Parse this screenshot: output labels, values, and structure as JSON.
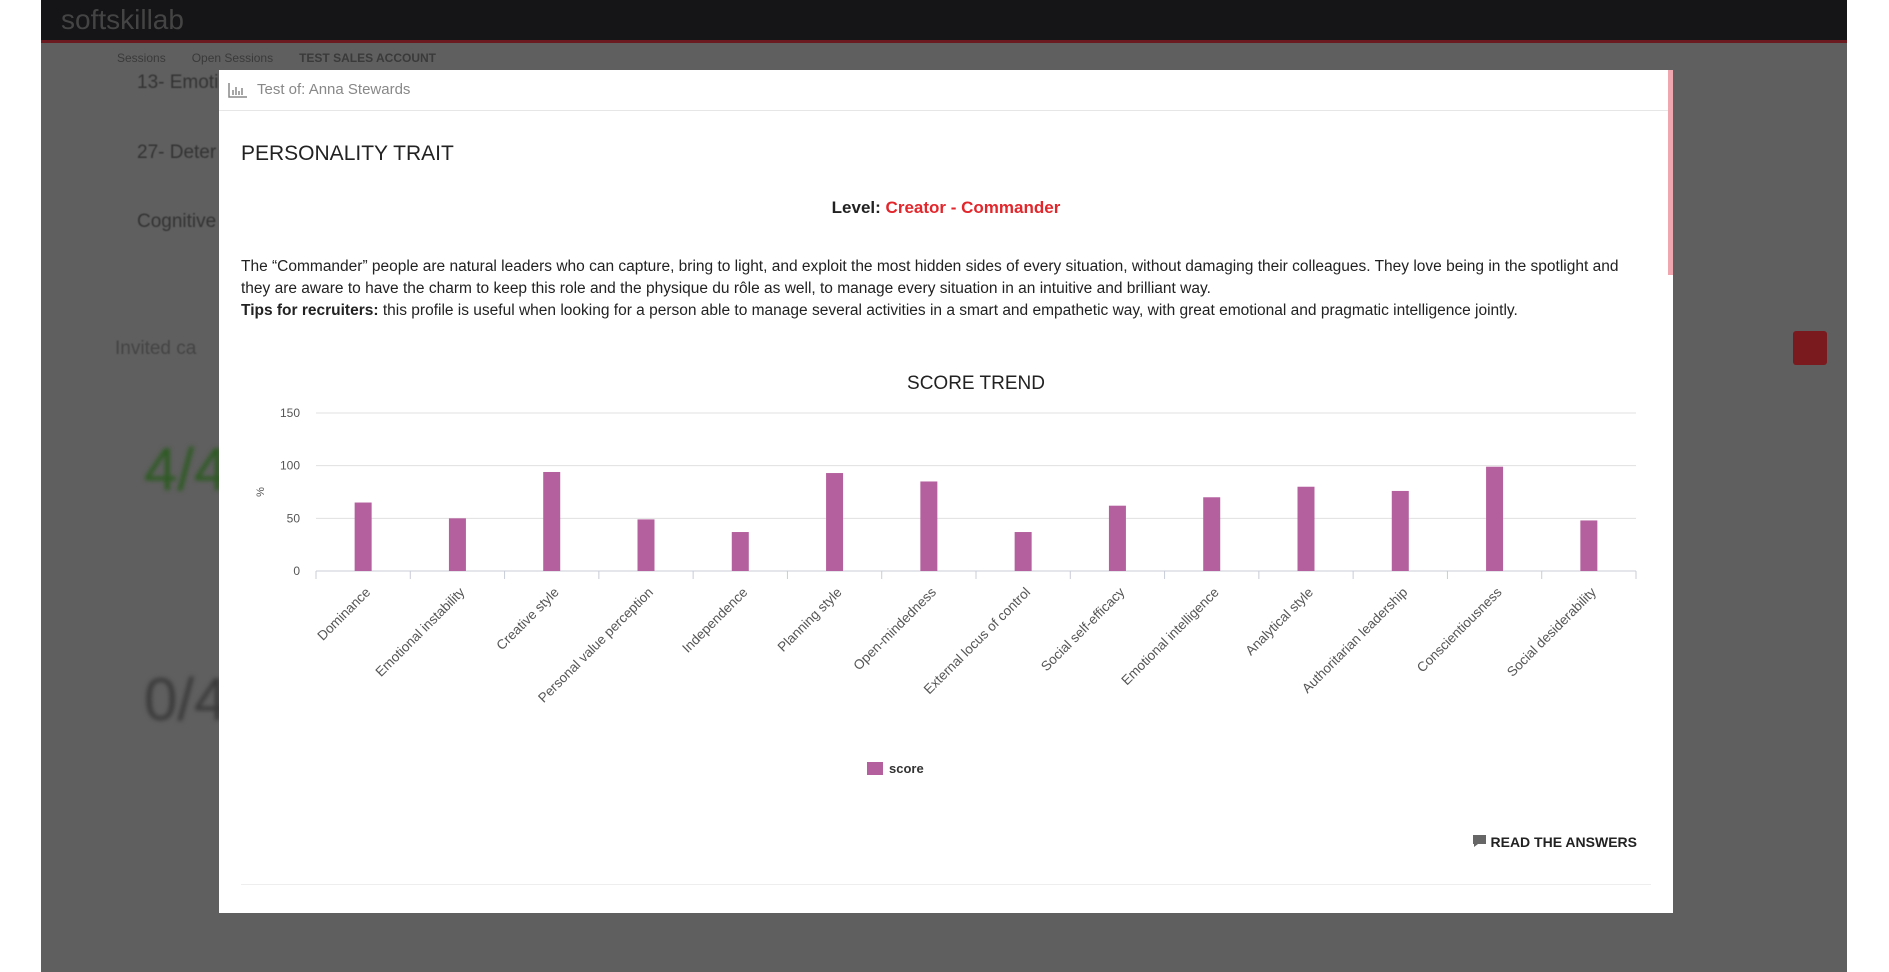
{
  "app": {
    "logo": "softskillab",
    "breadcrumb": [
      "Sessions",
      "Open Sessions",
      "TEST SALES ACCOUNT"
    ],
    "background_items": [
      "13- Emoti",
      "27- Deter",
      "Cognitive",
      "Invited ca"
    ],
    "counters": [
      "4/4",
      "0/4"
    ]
  },
  "modal": {
    "header": "Test of: Anna Stewards",
    "section_title": "PERSONALITY TRAIT",
    "level_label": "Level:",
    "level_value": "Creator - Commander",
    "description": "The “Commander” people are natural leaders who can capture, bring to light, and exploit the most hidden sides of every situation, without damaging their colleagues. They love being in the spotlight and they are aware to have the charm to keep this role and the physique du rôle as well, to manage every situation in an intuitive and brilliant way.",
    "tips_label": "Tips for recruiters:",
    "tips_text": "this profile is useful when looking for a person able to manage several activities in a smart and empathetic way, with great emotional and pragmatic intelligence jointly.",
    "button": "READ THE ANSWERS"
  },
  "chart_data": {
    "type": "bar",
    "title": "SCORE TREND",
    "y_label": "%",
    "categories": [
      "Dominance",
      "Emotional instability",
      "Creative style",
      "Personal value perception",
      "Independence",
      "Planning style",
      "Open-mindedness",
      "External locus of control",
      "Social self-efficacy",
      "Emotional intelligence",
      "Analytical style",
      "Authoritarian leadership",
      "Conscientiousness",
      "Social desiderability"
    ],
    "series": [
      {
        "name": "score",
        "color": "#b5609e",
        "values": [
          65,
          50,
          94,
          49,
          37,
          93,
          85,
          37,
          62,
          70,
          80,
          76,
          99,
          48
        ]
      }
    ],
    "ylim": [
      0,
      150
    ],
    "yticks": [
      0,
      50,
      100,
      150
    ],
    "grid": true
  }
}
